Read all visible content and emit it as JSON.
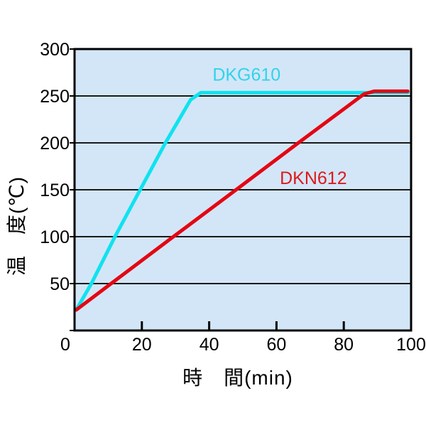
{
  "figure": {
    "background_color": "#ffffff",
    "plot_background_color": "#d3e6f8",
    "grid_color": "#1a1a1a",
    "axis_color": "#000000",
    "text_color": "#000000"
  },
  "chart_data": {
    "type": "line",
    "title": "",
    "xlabel": "時　間(min)",
    "ylabel": "温　度(℃)",
    "xlim": [
      0,
      100
    ],
    "ylim": [
      0,
      300
    ],
    "x_ticks": [
      0,
      20,
      40,
      60,
      80,
      100
    ],
    "y_ticks": [
      0,
      50,
      100,
      150,
      200,
      250,
      300
    ],
    "grid": "horizontal gridlines at every 50°C, no vertical gridlines",
    "legend_position": "inline labels next to lines",
    "series": [
      {
        "name": "DKG610",
        "color": "#10e2ef",
        "label_color": "#2fd4e8",
        "points": [
          [
            0.5,
            22
          ],
          [
            5,
            50
          ],
          [
            12,
            100
          ],
          [
            19.5,
            150
          ],
          [
            27,
            200
          ],
          [
            34.5,
            246
          ],
          [
            37.5,
            253.5
          ],
          [
            99,
            253.5
          ]
        ],
        "label_xy": [
          41,
          273
        ],
        "description": "fast heat-up: reaches ~253°C plateau at ~37 min"
      },
      {
        "name": "DKN612",
        "color": "#e30613",
        "label_color": "#dd1a1c",
        "points": [
          [
            0.5,
            22
          ],
          [
            10.5,
            49
          ],
          [
            29,
            99
          ],
          [
            48,
            150
          ],
          [
            66.5,
            200
          ],
          [
            86,
            252
          ],
          [
            89,
            255
          ],
          [
            99,
            255
          ]
        ],
        "label_xy": [
          61,
          163
        ],
        "description": "slow heat-up: reaches ~254°C plateau at ~88 min"
      }
    ]
  }
}
